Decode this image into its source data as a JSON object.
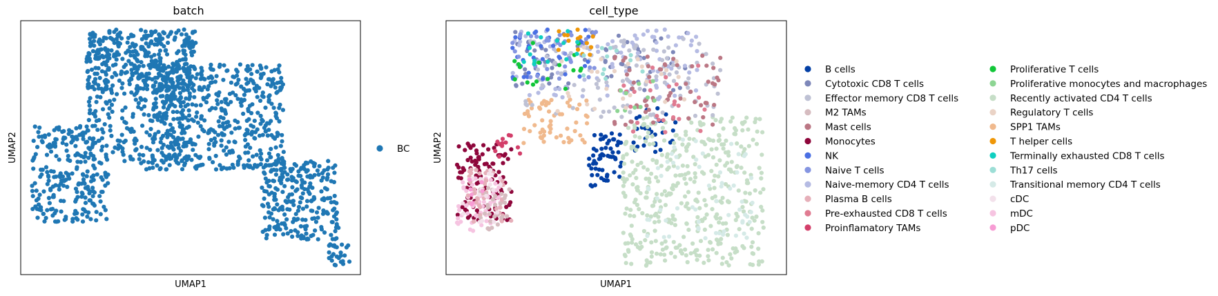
{
  "chart_data": [
    {
      "type": "scatter",
      "title": "batch",
      "xlabel": "UMAP1",
      "ylabel": "UMAP2",
      "grid": false,
      "legend": "right",
      "categories": [
        {
          "name": "BC",
          "color": "#1f77b4"
        }
      ],
      "clusters": [
        {
          "cat": 0,
          "x": [
            -4.5,
            -1.0
          ],
          "y": [
            -3.0,
            2.5
          ],
          "n": 260
        },
        {
          "cat": 0,
          "x": [
            -2.0,
            3.0
          ],
          "y": [
            4.5,
            8.0
          ],
          "n": 420
        },
        {
          "cat": 0,
          "x": [
            1.0,
            7.0
          ],
          "y": [
            0.0,
            6.0
          ],
          "n": 500
        },
        {
          "cat": 0,
          "x": [
            -2.0,
            2.5
          ],
          "y": [
            0.0,
            4.5
          ],
          "n": 180
        },
        {
          "cat": 0,
          "x": [
            6.0,
            9.5
          ],
          "y": [
            -4.0,
            0.5
          ],
          "n": 260
        },
        {
          "cat": 0,
          "x": [
            9.0,
            10.0
          ],
          "y": [
            -5.5,
            -4.2
          ],
          "n": 25
        }
      ]
    },
    {
      "type": "scatter",
      "title": "cell_type",
      "xlabel": "UMAP1",
      "ylabel": "UMAP2",
      "grid": false,
      "legend": "right",
      "categories": [
        {
          "name": "B cells",
          "color": "#023fa5"
        },
        {
          "name": "Cytotoxic CD8 T cells",
          "color": "#7d87b9"
        },
        {
          "name": "Effector memory CD8 T cells",
          "color": "#bec1d4"
        },
        {
          "name": "M2 TAMs",
          "color": "#d6bcc0"
        },
        {
          "name": "Mast cells",
          "color": "#bb7784"
        },
        {
          "name": "Monocytes",
          "color": "#8e063b"
        },
        {
          "name": "NK",
          "color": "#4a6fe3"
        },
        {
          "name": "Naive T cells",
          "color": "#8595e1"
        },
        {
          "name": "Naive-memory CD4 T cells",
          "color": "#b5bbe3"
        },
        {
          "name": "Plasma B cells",
          "color": "#e6afb9"
        },
        {
          "name": "Pre-exhausted CD8 T cells",
          "color": "#e07b91"
        },
        {
          "name": "Proinflamatory TAMs",
          "color": "#d33f6a"
        },
        {
          "name": "Proliferative T cells",
          "color": "#11c638"
        },
        {
          "name": "Proliferative monocytes and macrophages",
          "color": "#8dd593"
        },
        {
          "name": "Recently activated CD4 T cells",
          "color": "#c6dec7"
        },
        {
          "name": "Regulatory T cells",
          "color": "#ead3c6"
        },
        {
          "name": "SPP1 TAMs",
          "color": "#f0b98d"
        },
        {
          "name": "T helper cells",
          "color": "#ef9708"
        },
        {
          "name": "Terminally exhausted CD8 T cells",
          "color": "#0fcfc0"
        },
        {
          "name": "Th17 cells",
          "color": "#9cded6"
        },
        {
          "name": "Transitional memory CD4 T cells",
          "color": "#d5eae7"
        },
        {
          "name": "cDC",
          "color": "#f3e1eb"
        },
        {
          "name": "mDC",
          "color": "#f6c4e1"
        },
        {
          "name": "pDC",
          "color": "#f79cd4"
        }
      ],
      "clusters": [
        {
          "cat": 5,
          "x": [
            -4.5,
            -2.0
          ],
          "y": [
            -3.0,
            1.5
          ],
          "n": 110
        },
        {
          "cat": 22,
          "x": [
            -4.5,
            -2.5
          ],
          "y": [
            -3.5,
            -0.5
          ],
          "n": 60
        },
        {
          "cat": 9,
          "x": [
            -4.0,
            -2.0
          ],
          "y": [
            -3.0,
            0.0
          ],
          "n": 45
        },
        {
          "cat": 3,
          "x": [
            -3.5,
            -2.0
          ],
          "y": [
            -3.5,
            -1.0
          ],
          "n": 30
        },
        {
          "cat": 21,
          "x": [
            -4.5,
            -2.5
          ],
          "y": [
            -3.0,
            0.0
          ],
          "n": 20
        },
        {
          "cat": 23,
          "x": [
            -4.0,
            -3.0
          ],
          "y": [
            -2.0,
            -0.5
          ],
          "n": 8
        },
        {
          "cat": 16,
          "x": [
            -1.5,
            1.5
          ],
          "y": [
            1.5,
            4.0
          ],
          "n": 60
        },
        {
          "cat": 0,
          "x": [
            1.5,
            3.0
          ],
          "y": [
            -1.0,
            2.5
          ],
          "n": 60
        },
        {
          "cat": 0,
          "x": [
            3.5,
            5.5
          ],
          "y": [
            1.0,
            3.5
          ],
          "n": 30
        },
        {
          "cat": 14,
          "x": [
            3.0,
            9.5
          ],
          "y": [
            -5.5,
            3.0
          ],
          "n": 420
        },
        {
          "cat": 20,
          "x": [
            4.0,
            9.0
          ],
          "y": [
            -4.0,
            2.0
          ],
          "n": 60
        },
        {
          "cat": 1,
          "x": [
            -2.0,
            6.0
          ],
          "y": [
            4.5,
            8.0
          ],
          "n": 70
        },
        {
          "cat": 8,
          "x": [
            -2.0,
            6.5
          ],
          "y": [
            4.0,
            8.0
          ],
          "n": 100
        },
        {
          "cat": 2,
          "x": [
            -1.5,
            7.5
          ],
          "y": [
            3.0,
            7.5
          ],
          "n": 110
        },
        {
          "cat": 4,
          "x": [
            2.5,
            7.5
          ],
          "y": [
            2.5,
            6.5
          ],
          "n": 60
        },
        {
          "cat": 6,
          "x": [
            -2.0,
            1.5
          ],
          "y": [
            5.0,
            8.0
          ],
          "n": 35
        },
        {
          "cat": 7,
          "x": [
            -2.0,
            2.0
          ],
          "y": [
            5.0,
            8.0
          ],
          "n": 35
        },
        {
          "cat": 10,
          "x": [
            3.0,
            7.0
          ],
          "y": [
            2.0,
            6.0
          ],
          "n": 25
        },
        {
          "cat": 11,
          "x": [
            -3.0,
            -1.5
          ],
          "y": [
            0.5,
            2.0
          ],
          "n": 12
        },
        {
          "cat": 12,
          "x": [
            -2.0,
            1.5
          ],
          "y": [
            4.5,
            7.5
          ],
          "n": 18
        },
        {
          "cat": 13,
          "x": [
            2.5,
            4.5
          ],
          "y": [
            3.0,
            5.5
          ],
          "n": 10
        },
        {
          "cat": 15,
          "x": [
            0.0,
            6.0
          ],
          "y": [
            3.0,
            7.0
          ],
          "n": 25
        },
        {
          "cat": 17,
          "x": [
            0.0,
            2.0
          ],
          "y": [
            6.5,
            8.0
          ],
          "n": 14
        },
        {
          "cat": 18,
          "x": [
            -1.5,
            1.5
          ],
          "y": [
            6.0,
            8.0
          ],
          "n": 14
        },
        {
          "cat": 19,
          "x": [
            1.0,
            4.0
          ],
          "y": [
            5.0,
            7.0
          ],
          "n": 12
        }
      ]
    }
  ]
}
